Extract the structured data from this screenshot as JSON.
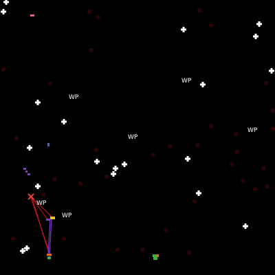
{
  "waypoint_label": "WP",
  "colors": {
    "background": "#000000",
    "star": "#ffffff",
    "dim_star": "#2a0606",
    "route": "#d01818",
    "route_alt": "#7a3cc8",
    "ship_marker": "#e84040",
    "waypoint_marker": "#f0c020",
    "fleet_green": "#3cb040",
    "fleet_orange": "#e07020",
    "fleet_purple": "#8040c0",
    "fleet_blue": "#3070d0",
    "fleet_pink": "#e06080"
  }
}
